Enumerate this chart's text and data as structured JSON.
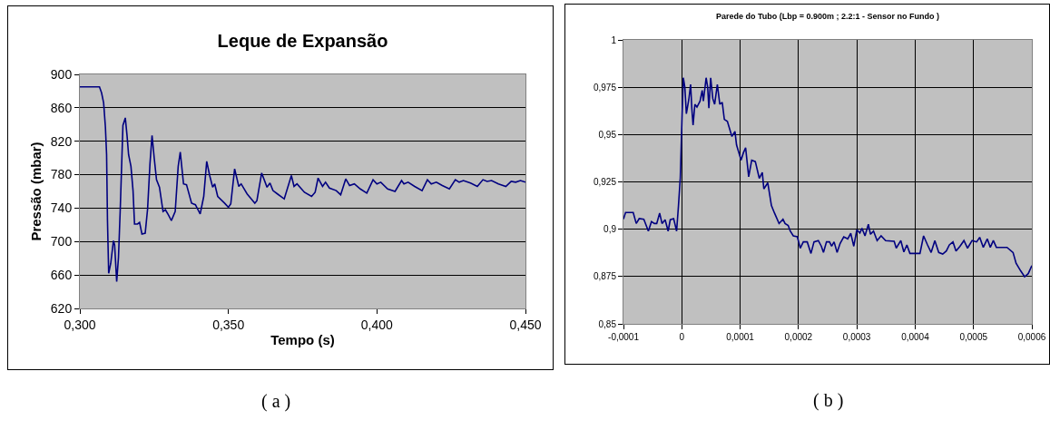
{
  "chart_data": [
    {
      "type": "line",
      "title": "Leque de Expansão",
      "xlabel": "Tempo (s)",
      "ylabel": "Pressão (mbar)",
      "annotations": [
        "( a )"
      ],
      "x": [
        0.3,
        0.3066,
        0.3073,
        0.308,
        0.3086,
        0.309,
        0.3093,
        0.3097,
        0.3104,
        0.3113,
        0.3117,
        0.3124,
        0.313,
        0.3136,
        0.3145,
        0.3153,
        0.3159,
        0.3164,
        0.3172,
        0.3179,
        0.3184,
        0.3194,
        0.3201,
        0.3209,
        0.322,
        0.3228,
        0.3236,
        0.3243,
        0.325,
        0.3258,
        0.3268,
        0.328,
        0.3288,
        0.3298,
        0.3308,
        0.3321,
        0.3331,
        0.3338,
        0.3349,
        0.3359,
        0.3376,
        0.3389,
        0.3405,
        0.3417,
        0.3427,
        0.3437,
        0.3447,
        0.3454,
        0.3464,
        0.3487,
        0.35,
        0.3508,
        0.3521,
        0.3535,
        0.3543,
        0.3563,
        0.3589,
        0.3596,
        0.3612,
        0.363,
        0.364,
        0.365,
        0.3665,
        0.3688,
        0.3712,
        0.3721,
        0.3731,
        0.3756,
        0.378,
        0.3792,
        0.3802,
        0.3817,
        0.3827,
        0.384,
        0.3863,
        0.3878,
        0.3895,
        0.3908,
        0.3924,
        0.3944,
        0.3966,
        0.3987,
        0.4,
        0.4013,
        0.4036,
        0.4061,
        0.4083,
        0.4091,
        0.4105,
        0.4127,
        0.4152,
        0.417,
        0.4183,
        0.42,
        0.422,
        0.4244,
        0.4264,
        0.4277,
        0.4291,
        0.4315,
        0.4338,
        0.4357,
        0.4371,
        0.4386,
        0.4409,
        0.4434,
        0.4452,
        0.4467,
        0.4483,
        0.45
      ],
      "series": [
        {
          "color": "#000080",
          "values": [
            885,
            885,
            878,
            866,
            837,
            804,
            725,
            662,
            674,
            701,
            696,
            652,
            681,
            739,
            839,
            848,
            826,
            804,
            790,
            761,
            721,
            721,
            723,
            709,
            710,
            739,
            793,
            827,
            801,
            774,
            765,
            736,
            738,
            732,
            725,
            736,
            790,
            807,
            769,
            768,
            746,
            744,
            733,
            754,
            796,
            779,
            765,
            769,
            754,
            746,
            741,
            745,
            787,
            766,
            769,
            757,
            746,
            749,
            782,
            765,
            770,
            761,
            757,
            751,
            779,
            766,
            769,
            759,
            754,
            759,
            776,
            766,
            771,
            764,
            761,
            756,
            775,
            767,
            769,
            763,
            758,
            774,
            769,
            771,
            763,
            760,
            773,
            769,
            771,
            766,
            761,
            774,
            769,
            771,
            767,
            763,
            774,
            771,
            773,
            770,
            766,
            774,
            772,
            773,
            769,
            766,
            772,
            771,
            773,
            771
          ]
        }
      ],
      "xlim": [
        0.3,
        0.45
      ],
      "xticks": [
        {
          "value": 0.3,
          "label": "0,300"
        },
        {
          "value": 0.35,
          "label": "0,350"
        },
        {
          "value": 0.4,
          "label": "0,400"
        },
        {
          "value": 0.45,
          "label": "0,450"
        }
      ],
      "ylim": [
        620,
        900
      ],
      "yticks": [
        620,
        660,
        700,
        740,
        780,
        820,
        860,
        900
      ],
      "grid": "y",
      "marker": "none",
      "line_style": "solid"
    },
    {
      "type": "line",
      "title": "Parede do Tubo (Lbp = 0.900m ; 2.2:1 - Sensor no Fundo )",
      "annotations": [
        "( b )"
      ],
      "x": [
        -0.0001,
        -9.64e-05,
        -8.33e-05,
        -7.81e-05,
        -7.3e-05,
        -6.51e-05,
        -5.73e-05,
        -5.2e-05,
        -4.69e-05,
        -4.3e-05,
        -3.8e-05,
        -3.39e-05,
        -2.86e-05,
        -2.34e-05,
        -1.98e-05,
        -1.4e-05,
        -1.2e-05,
        -8.9e-06,
        -5.7e-06,
        -2.6e-06,
        5e-07,
        2.6e-06,
        5.2e-06,
        7.8e-06,
        1.2e-05,
        1.51e-05,
        1.72e-05,
        1.93e-05,
        2.24e-05,
        2.6e-05,
        3.13e-05,
        3.49e-05,
        3.7e-05,
        4.17e-05,
        4.43e-05,
        4.64e-05,
        4.95e-05,
        5.31e-05,
        5.63e-05,
        6.09e-05,
        6.51e-05,
        6.93e-05,
        7.29e-05,
        7.81e-05,
        8.59e-05,
        9.11e-05,
        9.38e-05,
        0.0001016,
        0.0001057,
        0.0001094,
        0.0001146,
        0.0001198,
        0.000126,
        0.0001328,
        0.000138,
        0.0001406,
        0.0001474,
        0.0001536,
        0.0001589,
        0.0001667,
        0.0001734,
        0.000177,
        0.0001823,
        0.0001859,
        0.0001911,
        0.000198,
        0.000203,
        0.0002083,
        0.000215,
        0.0002214,
        0.0002266,
        0.000234,
        0.0002392,
        0.0002428,
        0.000248,
        0.0002532,
        0.0002568,
        0.000261,
        0.0002662,
        0.0002714,
        0.0002776,
        0.0002844,
        0.0002896,
        0.0002948,
        0.0003,
        0.0003052,
        0.0003088,
        0.000314,
        0.0003198,
        0.0003234,
        0.0003286,
        0.0003348,
        0.0003416,
        0.0003494,
        0.000364,
        0.0003676,
        0.0003754,
        0.0003806,
        0.0003858,
        0.000391,
        0.0004082,
        0.0004144,
        0.0004212,
        0.0004274,
        0.0004337,
        0.0004404,
        0.0004472,
        0.0004534,
        0.0004586,
        0.0004648,
        0.00047,
        0.0004768,
        0.0004836,
        0.0004898,
        0.0004976,
        0.0005054,
        0.0005106,
        0.0005168,
        0.0005236,
        0.0005288,
        0.000534,
        0.0005392,
        0.0005574,
        0.0005678,
        0.000573,
        0.0005808,
        0.0005876,
        0.0005938,
        0.0006
      ],
      "series": [
        {
          "color": "#000080",
          "values": [
            0.9053,
            0.9088,
            0.9088,
            0.903,
            0.9056,
            0.9053,
            0.899,
            0.904,
            0.903,
            0.903,
            0.9085,
            0.903,
            0.905,
            0.899,
            0.905,
            0.9056,
            0.903,
            0.899,
            0.9125,
            0.927,
            0.9605,
            0.98,
            0.975,
            0.961,
            0.9685,
            0.9765,
            0.9637,
            0.955,
            0.966,
            0.9645,
            0.9677,
            0.9733,
            0.9677,
            0.98,
            0.975,
            0.964,
            0.98,
            0.969,
            0.966,
            0.9765,
            0.966,
            0.967,
            0.958,
            0.957,
            0.949,
            0.9517,
            0.9445,
            0.9365,
            0.9405,
            0.943,
            0.9277,
            0.9365,
            0.9357,
            0.9269,
            0.93,
            0.9213,
            0.9245,
            0.9125,
            0.9085,
            0.903,
            0.9053,
            0.903,
            0.902,
            0.899,
            0.8965,
            0.896,
            0.89,
            0.8933,
            0.8933,
            0.8872,
            0.8933,
            0.894,
            0.891,
            0.8877,
            0.8933,
            0.8933,
            0.891,
            0.8933,
            0.8877,
            0.8925,
            0.896,
            0.8949,
            0.8978,
            0.891,
            0.8997,
            0.898,
            0.9005,
            0.8965,
            0.9026,
            0.8973,
            0.899,
            0.894,
            0.8965,
            0.894,
            0.8936,
            0.89,
            0.894,
            0.888,
            0.8917,
            0.8872,
            0.8872,
            0.8965,
            0.8917,
            0.8877,
            0.894,
            0.8877,
            0.8869,
            0.8885,
            0.8917,
            0.8933,
            0.8885,
            0.891,
            0.894,
            0.89,
            0.894,
            0.8933,
            0.8957,
            0.8904,
            0.8949,
            0.8904,
            0.894,
            0.8904,
            0.8904,
            0.8877,
            0.882,
            0.878,
            0.8749,
            0.8765,
            0.8808
          ]
        }
      ],
      "xlim": [
        -0.0001,
        0.0006
      ],
      "xticks": [
        {
          "value": -0.0001,
          "label": "-0,0001"
        },
        0,
        {
          "value": 0.0001,
          "label": "0,0001"
        },
        {
          "value": 0.0002,
          "label": "0,0002"
        },
        {
          "value": 0.0003,
          "label": "0,0003"
        },
        {
          "value": 0.0004,
          "label": "0,0004"
        },
        {
          "value": 0.0005,
          "label": "0,0005"
        },
        {
          "value": 0.0006,
          "label": "0,0006"
        }
      ],
      "ylim": [
        0.85,
        1
      ],
      "yticks": [
        {
          "value": 0.85,
          "label": "0,85"
        },
        {
          "value": 0.875,
          "label": "0,875"
        },
        {
          "value": 0.9,
          "label": "0,9"
        },
        {
          "value": 0.925,
          "label": "0,925"
        },
        {
          "value": 0.95,
          "label": "0,95"
        },
        {
          "value": 0.975,
          "label": "0,975"
        },
        1
      ],
      "grid": true,
      "marker": "none",
      "line_style": "solid"
    }
  ]
}
